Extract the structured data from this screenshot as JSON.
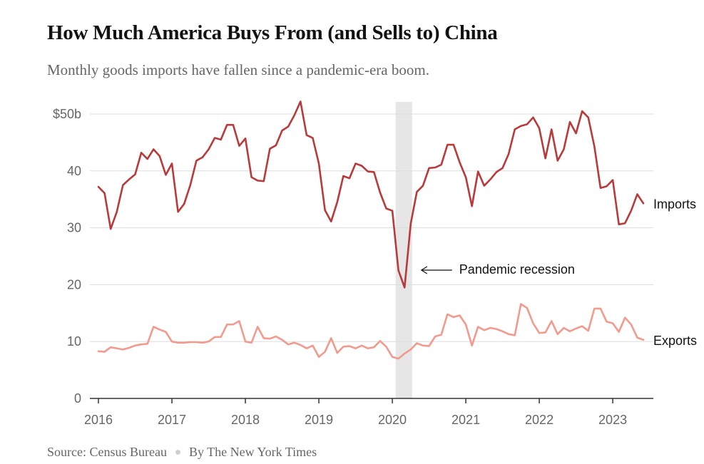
{
  "header": {
    "title": "How Much America Buys From (and Sells to) China",
    "subtitle": "Monthly goods imports have fallen since a pandemic-era boom."
  },
  "footer": {
    "source": "Source: Census Bureau",
    "byline": "By The New York Times"
  },
  "colors": {
    "imports": "#b83a3a",
    "exports": "#f29a8e",
    "recession_band": "#e6e6e6",
    "gridline": "#dddddd",
    "axis": "#333333"
  },
  "chart_data": {
    "type": "line",
    "title": "How Much America Buys From (and Sells to) China",
    "subtitle": "Monthly goods imports have fallen since a pandemic-era boom.",
    "xlabel": "",
    "ylabel": "",
    "x_start": "2016-01",
    "x_end": "2023-06",
    "xlim": [
      "2016-01",
      "2023-06"
    ],
    "ylim": [
      0,
      50
    ],
    "y_ticks": [
      0,
      10,
      20,
      30,
      40,
      50
    ],
    "y_tick_labels": [
      "0",
      "10",
      "20",
      "30",
      "40",
      "$50b"
    ],
    "x_ticks": [
      "2016",
      "2017",
      "2018",
      "2019",
      "2020",
      "2021",
      "2022",
      "2023"
    ],
    "grid": "horizontal",
    "legend": "labels at line ends (right)",
    "shaded_period": {
      "start": "2020-02",
      "end": "2020-04",
      "label": "Pandemic recession"
    },
    "series": [
      {
        "name": "Imports",
        "values": [
          37.2,
          36.1,
          29.8,
          32.8,
          37.5,
          38.5,
          39.4,
          43.2,
          42.1,
          43.8,
          42.6,
          39.3,
          41.3,
          32.8,
          34.2,
          37.5,
          41.8,
          42.4,
          43.8,
          45.8,
          45.5,
          48.1,
          48.1,
          44.4,
          45.7,
          38.9,
          38.3,
          38.2,
          43.9,
          44.5,
          47.1,
          47.8,
          49.8,
          52.2,
          46.3,
          45.8,
          41.3,
          33.1,
          31.1,
          34.5,
          39.1,
          38.7,
          41.3,
          40.9,
          39.9,
          39.8,
          36.2,
          33.4,
          33.0,
          22.5,
          19.5,
          30.7,
          36.3,
          37.4,
          40.5,
          40.6,
          41.1,
          44.6,
          44.6,
          41.5,
          38.9,
          33.8,
          39.9,
          37.4,
          38.5,
          39.8,
          40.5,
          43.0,
          47.3,
          47.9,
          48.2,
          49.4,
          47.5,
          42.2,
          47.3,
          41.8,
          43.8,
          48.6,
          46.6,
          50.5,
          49.4,
          44.3,
          37.0,
          37.3,
          38.4,
          30.6,
          30.8,
          33.0,
          35.9,
          34.3
        ]
      },
      {
        "name": "Exports",
        "values": [
          8.3,
          8.2,
          9.0,
          8.8,
          8.6,
          8.9,
          9.3,
          9.5,
          9.6,
          12.6,
          12.1,
          11.7,
          10.0,
          9.8,
          9.8,
          9.9,
          9.9,
          9.8,
          10.0,
          10.8,
          10.8,
          13.0,
          13.0,
          13.6,
          10.0,
          9.8,
          12.6,
          10.6,
          10.5,
          10.9,
          10.3,
          9.5,
          9.8,
          9.4,
          8.8,
          9.3,
          7.3,
          8.2,
          10.6,
          8.0,
          9.1,
          9.2,
          8.8,
          9.3,
          8.8,
          9.0,
          10.1,
          9.1,
          7.3,
          7.0,
          7.9,
          8.6,
          9.7,
          9.3,
          9.2,
          10.9,
          11.2,
          14.8,
          14.3,
          14.6,
          13.0,
          9.3,
          12.6,
          12.0,
          12.4,
          12.2,
          11.8,
          11.3,
          11.1,
          16.6,
          15.9,
          13.2,
          11.5,
          11.6,
          13.6,
          11.3,
          12.4,
          11.8,
          12.3,
          12.7,
          11.9,
          15.8,
          15.8,
          13.5,
          13.2,
          11.7,
          14.2,
          13.0,
          10.7,
          10.3
        ]
      }
    ]
  }
}
